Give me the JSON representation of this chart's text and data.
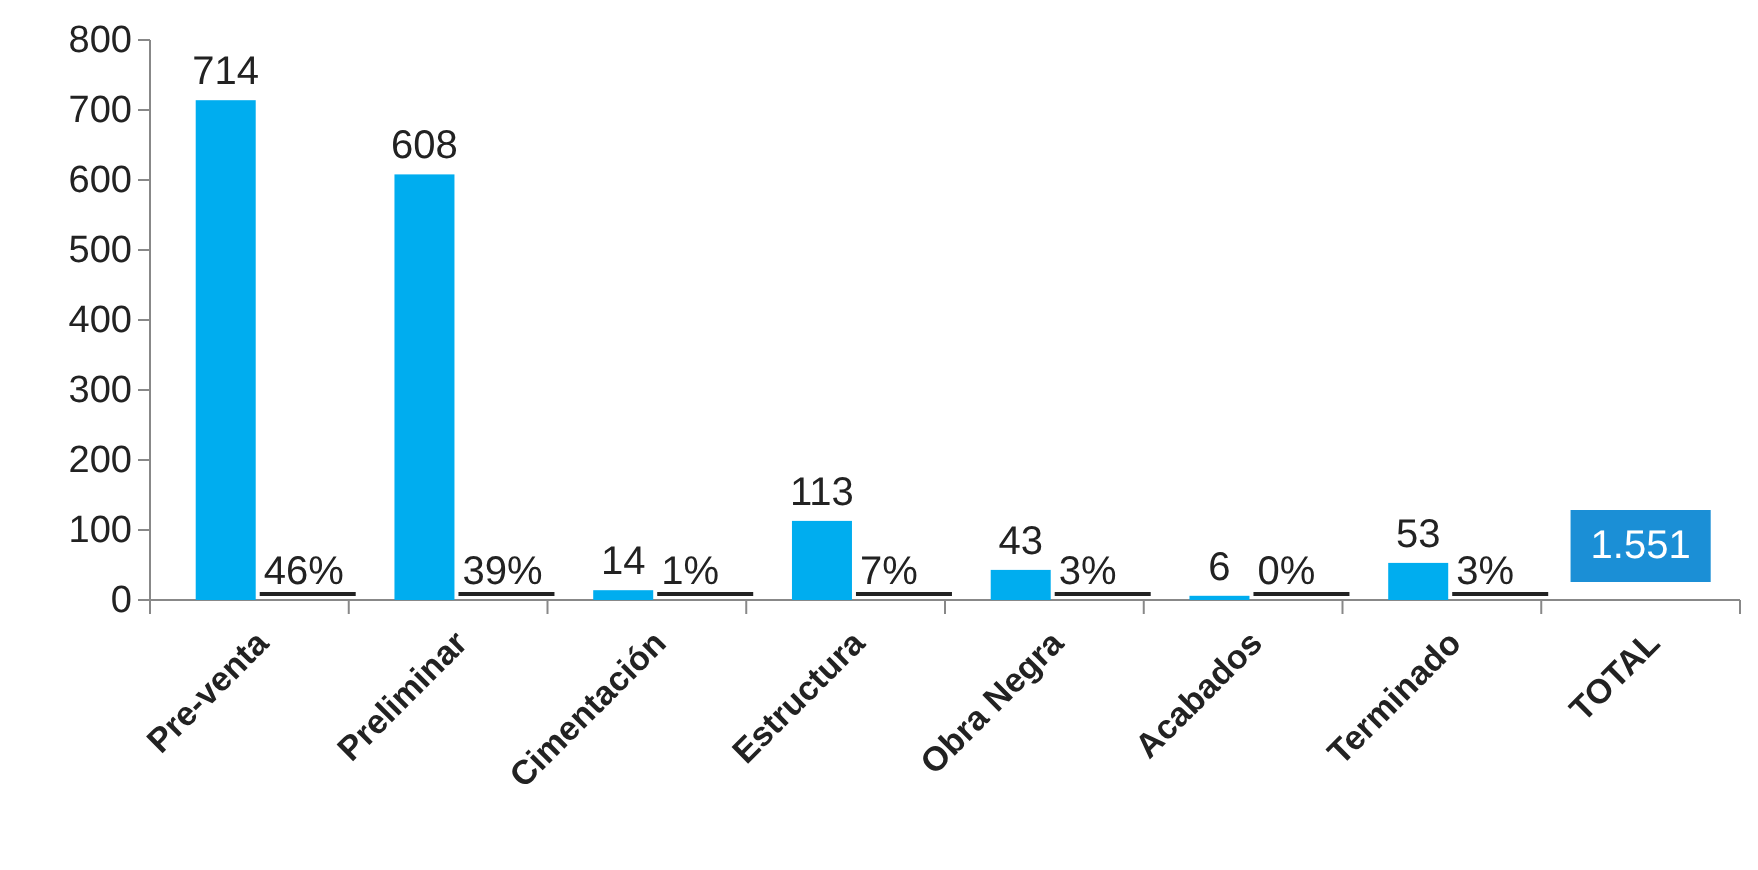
{
  "chart_data": {
    "type": "bar",
    "categories": [
      "Pre-venta",
      "Preliminar",
      "Cimentación",
      "Estructura",
      "Obra Negra",
      "Acabados",
      "Terminado",
      "TOTAL"
    ],
    "values": [
      714,
      608,
      14,
      113,
      43,
      6,
      53,
      null
    ],
    "color": "#00adef",
    "data_labels": true,
    "ylim": [
      0,
      800
    ],
    "yticks": [
      0,
      100,
      200,
      300,
      400,
      500,
      600,
      700,
      800
    ],
    "grid": false,
    "annotations": [
      "46%",
      "39%",
      "1%",
      "7%",
      "3%",
      "0%",
      "3%",
      "1.551"
    ]
  }
}
